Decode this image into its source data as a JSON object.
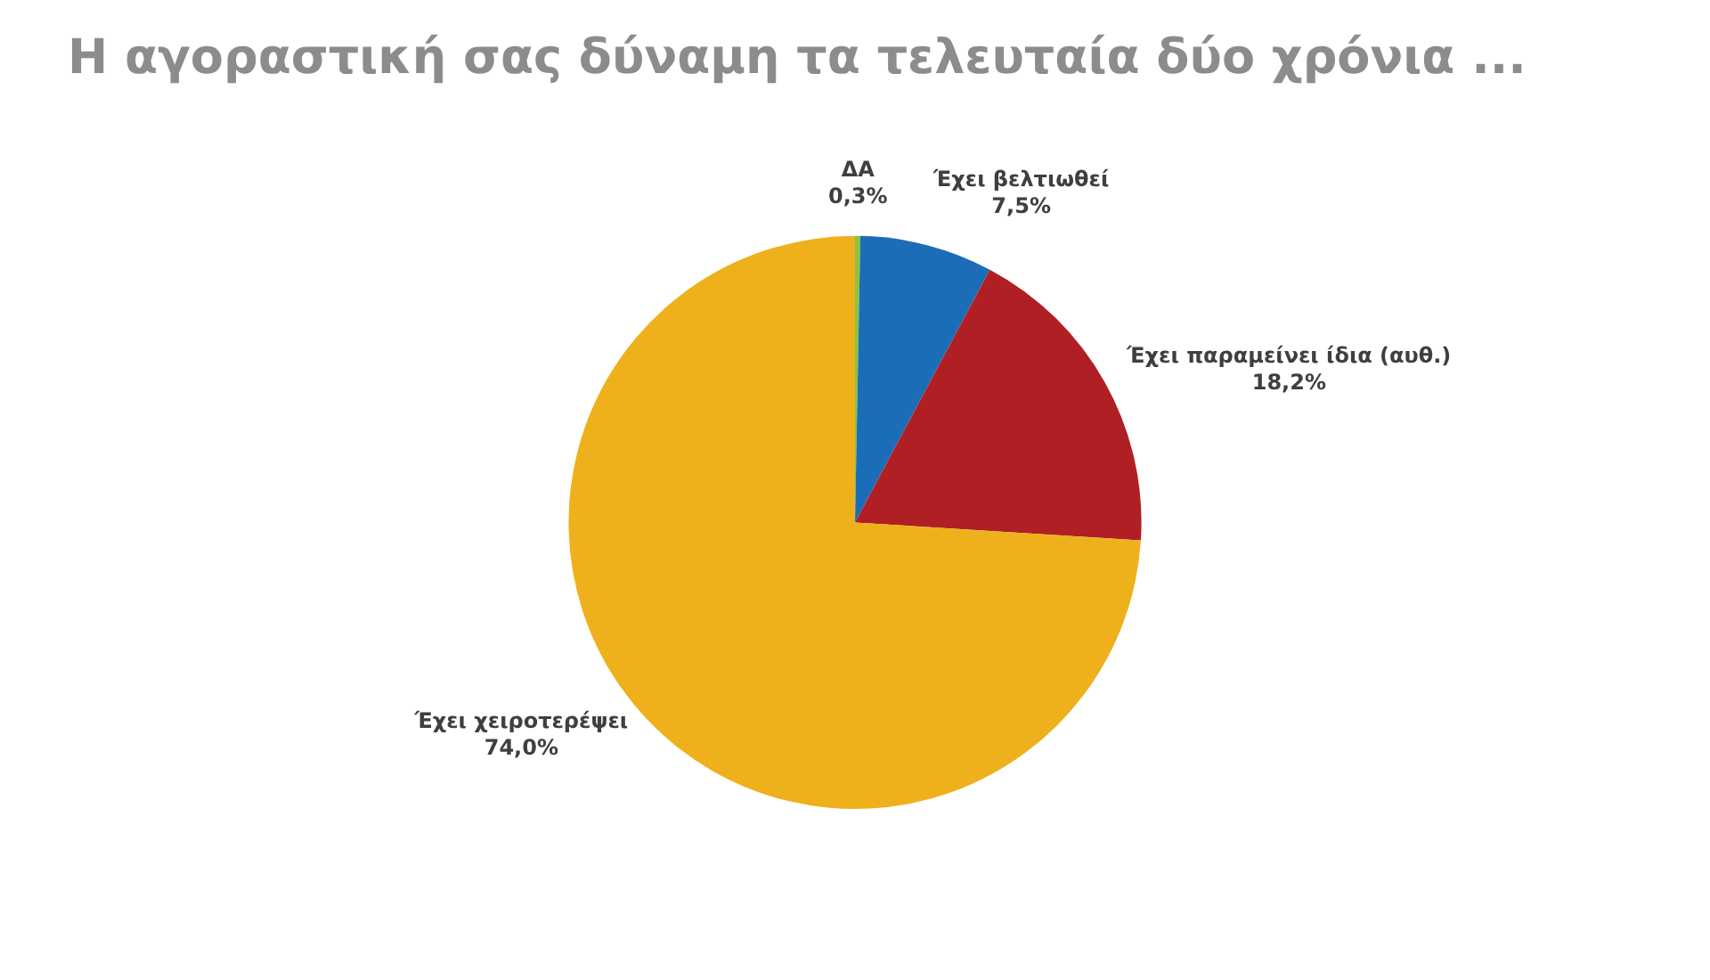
{
  "chart_data": {
    "type": "pie",
    "title": "Η αγοραστική σας δύναμη τα τελευταία δύο χρόνια ...",
    "categories": [
      "ΔΑ",
      "Έχει βελτιωθεί",
      "Έχει παραμείνει ίδια (αυθ.)",
      "Έχει χειροτερέψει"
    ],
    "values": [
      0.3,
      7.5,
      18.2,
      74.0
    ],
    "colors": [
      "#8cc43c",
      "#1c6db8",
      "#b01f24",
      "#eeb11c"
    ],
    "value_labels": [
      "0,3%",
      "7,5%",
      "18,2%",
      "74,0%"
    ]
  }
}
